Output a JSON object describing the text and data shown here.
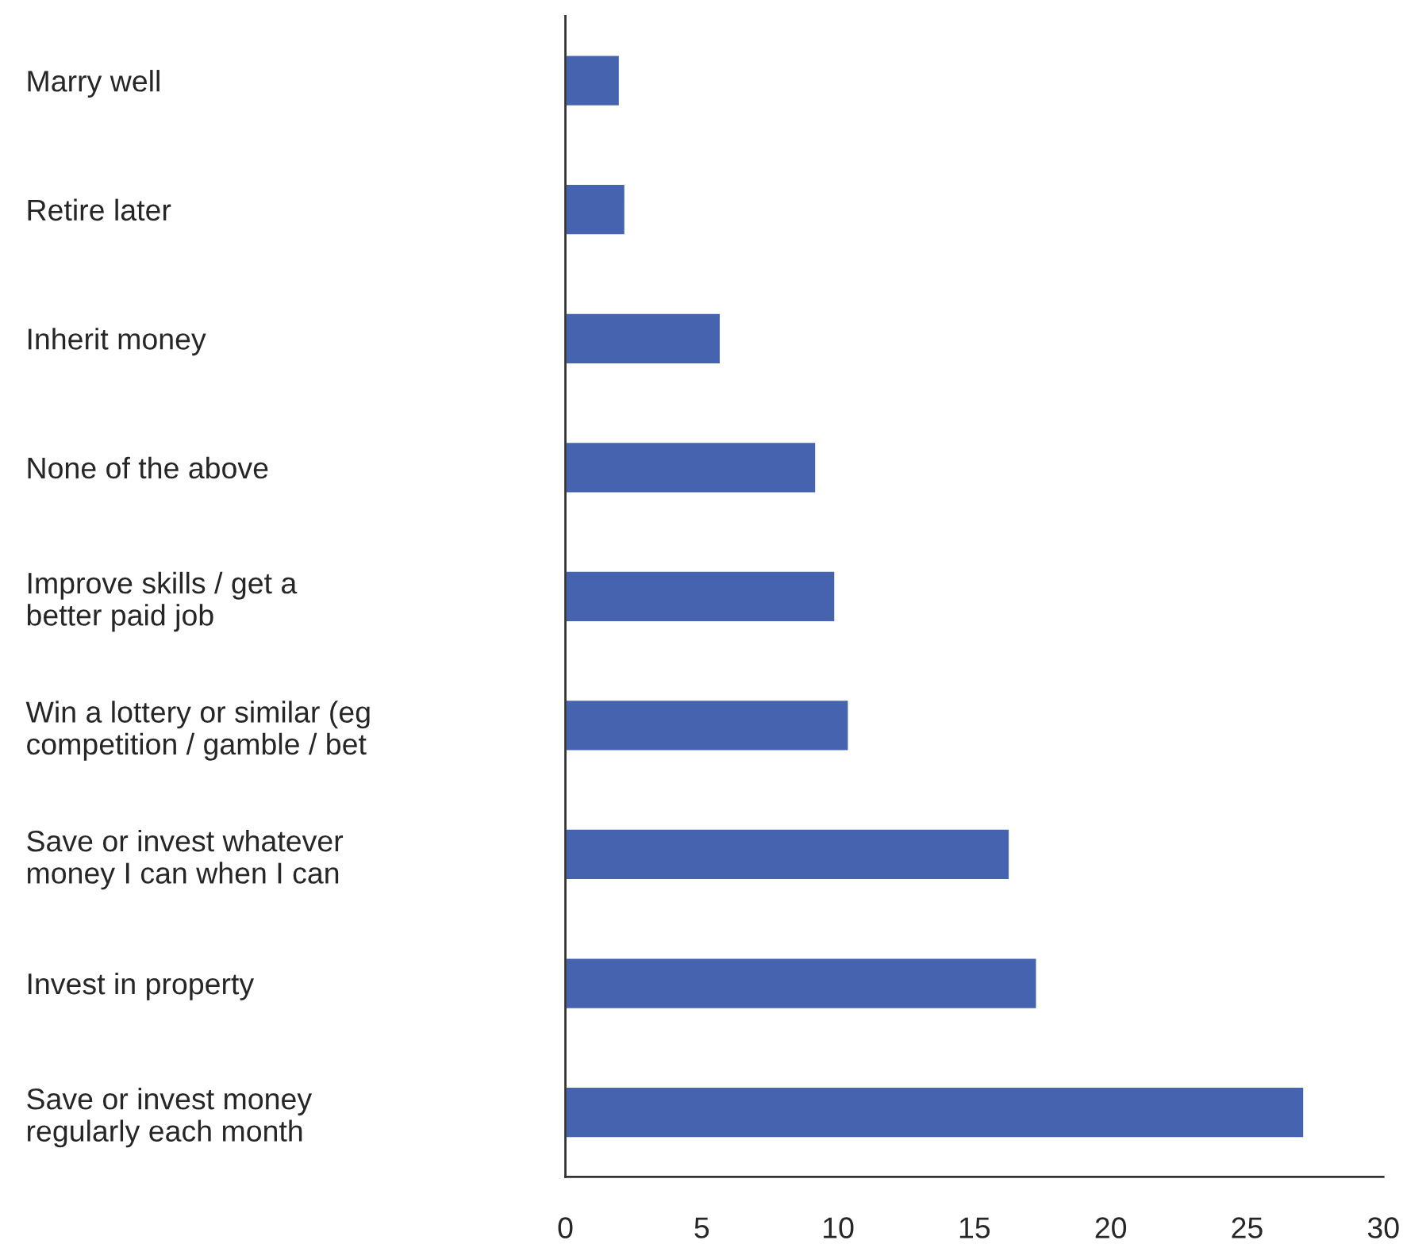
{
  "chart_data": {
    "type": "bar",
    "orientation": "horizontal",
    "categories": [
      "Marry well",
      "Retire later",
      "Inherit money",
      "None of the above",
      "Improve skills / get a\nbetter paid job",
      "Win a lottery or similar (eg\ncompetition / gamble / bet",
      "Save or invest whatever\nmoney I can when I can",
      "Invest in property",
      "Save or invest money\nregularly each month"
    ],
    "values": [
      2.0,
      2.2,
      5.7,
      9.2,
      9.9,
      10.4,
      16.3,
      17.3,
      27.1
    ],
    "color": "#4563ae",
    "xlim": [
      0,
      30
    ],
    "xticks": [
      0,
      5,
      10,
      15,
      20,
      25,
      30
    ],
    "grid": false
  }
}
